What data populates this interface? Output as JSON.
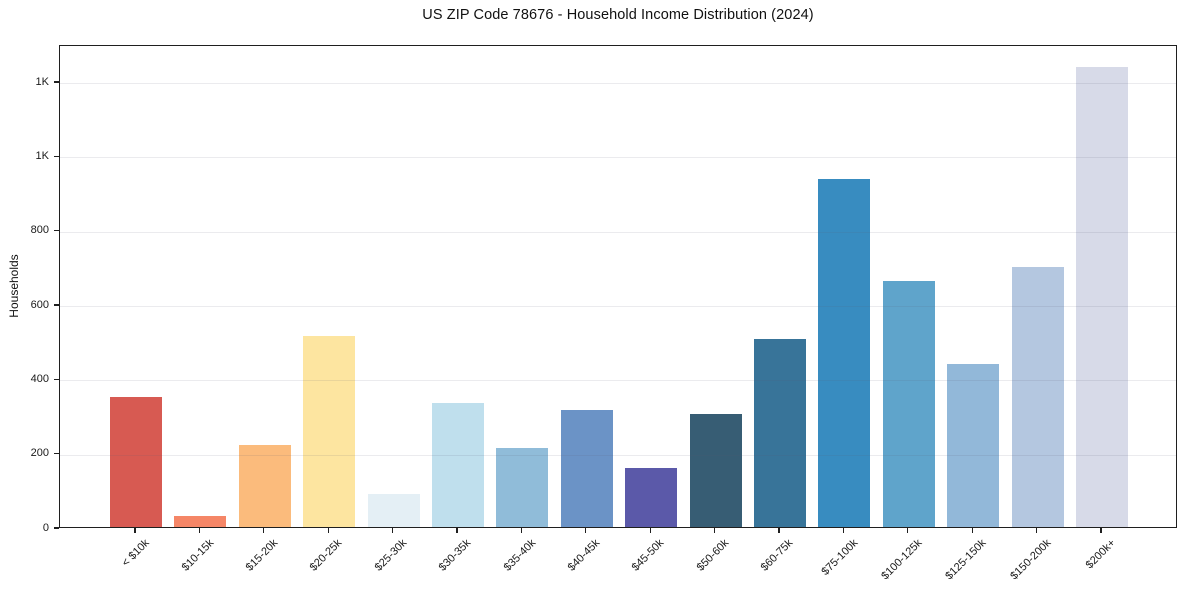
{
  "figure": {
    "title": "US ZIP Code 78676 - Household Income Distribution (2024)",
    "ylabel": "Households"
  },
  "chart_data": {
    "type": "bar",
    "title": "US ZIP Code 78676 - Household Income Distribution (2024)",
    "xlabel": "",
    "ylabel": "Households",
    "categories": [
      "< $10k",
      "$10-15k",
      "$15-20k",
      "$20-25k",
      "$25-30k",
      "$30-35k",
      "$35-40k",
      "$40-45k",
      "$45-50k",
      "$50-60k",
      "$60-75k",
      "$75-100k",
      "$100-125k",
      "$125-150k",
      "$150-200k",
      "$200k+"
    ],
    "values": [
      350,
      30,
      220,
      515,
      90,
      335,
      212,
      315,
      160,
      305,
      505,
      938,
      663,
      438,
      700,
      1237
    ],
    "bar_colors": [
      "#d75a52",
      "#f58667",
      "#fbbb7c",
      "#fde5a0",
      "#e4eff5",
      "#bfdfed",
      "#90bcd9",
      "#6b93c6",
      "#5b59a9",
      "#375d74",
      "#387499",
      "#388cc0",
      "#5fa4cb",
      "#92b8d9",
      "#b4c7e0",
      "#d7dae8"
    ],
    "ylim": [
      0,
      1300
    ],
    "yticks": {
      "values": [
        0,
        200,
        400,
        600,
        800,
        1000,
        1200
      ],
      "labels": [
        "0",
        "200",
        "400",
        "600",
        "800",
        "1K",
        "1K"
      ]
    },
    "grid": "horizontal",
    "legend": "none"
  }
}
